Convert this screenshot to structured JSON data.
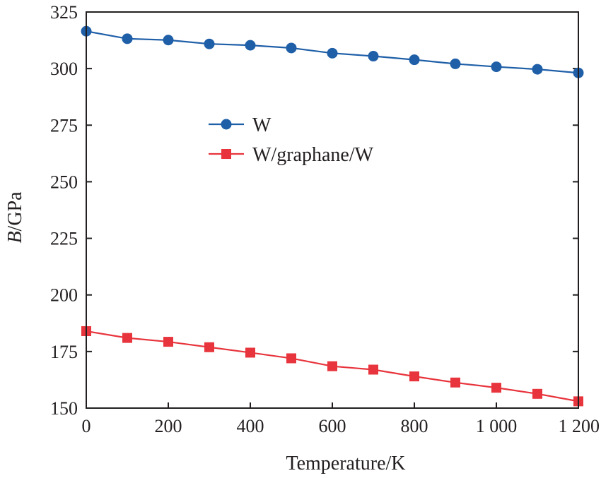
{
  "chart_data": {
    "type": "line",
    "xlabel": "Temperature/K",
    "ylabel_italic": "B",
    "ylabel_rest": "/GPa",
    "xlim": [
      0,
      1200
    ],
    "ylim": [
      150,
      325
    ],
    "xticks": [
      0,
      200,
      400,
      600,
      800,
      1000,
      1200
    ],
    "xtick_labels": [
      "0",
      "200",
      "400",
      "600",
      "800",
      "1 000",
      "1 200"
    ],
    "yticks": [
      150,
      175,
      200,
      225,
      250,
      275,
      300,
      325
    ],
    "ytick_labels": [
      "150",
      "175",
      "200",
      "225",
      "250",
      "275",
      "300",
      "325"
    ],
    "grid": false,
    "legend_position": "upper-middle",
    "x": [
      0,
      100,
      200,
      300,
      400,
      500,
      600,
      700,
      800,
      900,
      1000,
      1100,
      1200
    ],
    "series": [
      {
        "name": "W",
        "marker": "circle",
        "color": "#1f5fa8",
        "values": [
          316.5,
          313.2,
          312.6,
          310.9,
          310.3,
          309.1,
          306.8,
          305.5,
          303.9,
          302.1,
          300.8,
          299.7,
          298.1
        ]
      },
      {
        "name": "W/graphane/W",
        "marker": "square",
        "color": "#e8343c",
        "values": [
          184.0,
          181.0,
          179.3,
          176.9,
          174.5,
          172.0,
          168.5,
          167.0,
          164.0,
          161.3,
          159.0,
          156.3,
          153.0
        ]
      }
    ]
  }
}
